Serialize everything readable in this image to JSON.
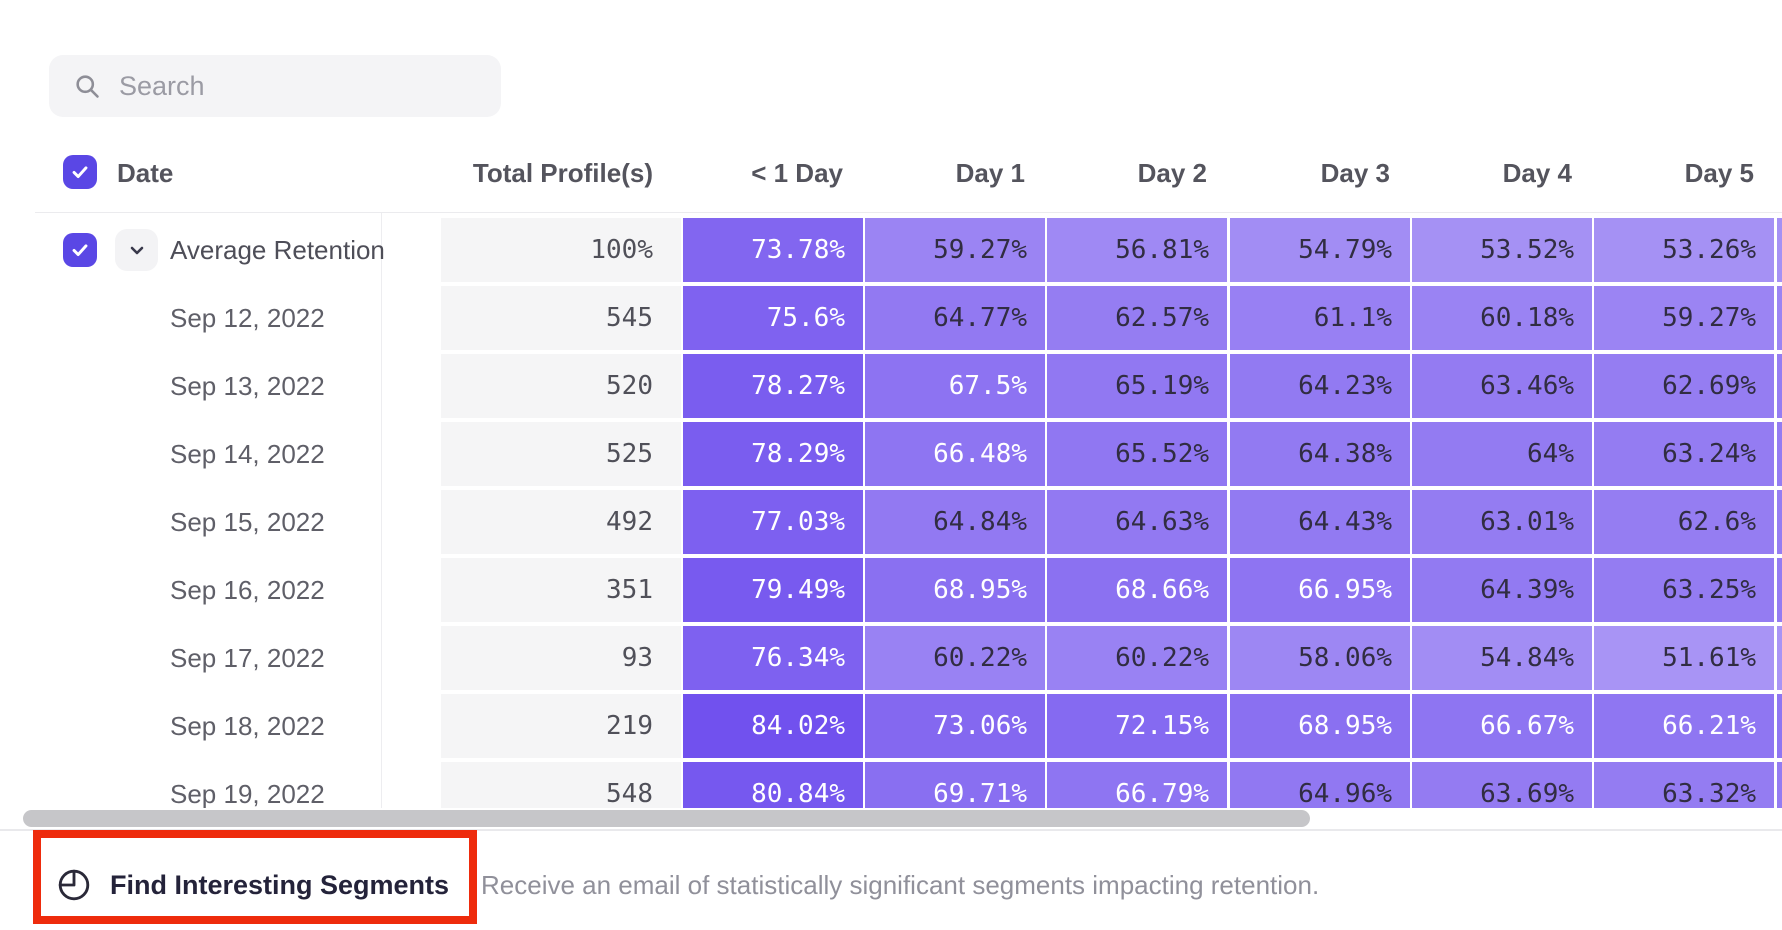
{
  "search": {
    "placeholder": "Search"
  },
  "table": {
    "date_header": "Date",
    "total_header": "Total Profile(s)",
    "day_headers": [
      "< 1 Day",
      "Day 1",
      "Day 2",
      "Day 3",
      "Day 4",
      "Day 5"
    ],
    "rows": [
      {
        "label": "Average Retention",
        "total": "100%",
        "expandable": true,
        "checked": true,
        "cells": [
          "73.78%",
          "59.27%",
          "56.81%",
          "54.79%",
          "53.52%",
          "53.26%"
        ]
      },
      {
        "label": "Sep 12, 2022",
        "total": "545",
        "cells": [
          "75.6%",
          "64.77%",
          "62.57%",
          "61.1%",
          "60.18%",
          "59.27%"
        ]
      },
      {
        "label": "Sep 13, 2022",
        "total": "520",
        "cells": [
          "78.27%",
          "67.5%",
          "65.19%",
          "64.23%",
          "63.46%",
          "62.69%"
        ]
      },
      {
        "label": "Sep 14, 2022",
        "total": "525",
        "cells": [
          "78.29%",
          "66.48%",
          "65.52%",
          "64.38%",
          "64%",
          "63.24%"
        ]
      },
      {
        "label": "Sep 15, 2022",
        "total": "492",
        "cells": [
          "77.03%",
          "64.84%",
          "64.63%",
          "64.43%",
          "63.01%",
          "62.6%"
        ]
      },
      {
        "label": "Sep 16, 2022",
        "total": "351",
        "cells": [
          "79.49%",
          "68.95%",
          "68.66%",
          "66.95%",
          "64.39%",
          "63.25%"
        ]
      },
      {
        "label": "Sep 17, 2022",
        "total": "93",
        "cells": [
          "76.34%",
          "60.22%",
          "60.22%",
          "58.06%",
          "54.84%",
          "51.61%"
        ]
      },
      {
        "label": "Sep 18, 2022",
        "total": "219",
        "cells": [
          "84.02%",
          "73.06%",
          "72.15%",
          "68.95%",
          "66.67%",
          "66.21%"
        ]
      },
      {
        "label": "Sep 19, 2022",
        "total": "548",
        "cells": [
          "80.84%",
          "69.71%",
          "66.79%",
          "64.96%",
          "63.69%",
          "63.32%"
        ]
      }
    ]
  },
  "footer": {
    "button_label": "Find Interesting Segments",
    "description": "Receive an email of statistically significant segments impacting retention."
  },
  "colors": {
    "accent_checkbox": "#5a47e5",
    "heatmap_base_rgb": "86,48,235",
    "heatmap_dark_text": "#312d42",
    "annotation_red": "#ee2b0c",
    "total_cell_bg": "#f5f5f6",
    "scrollbar_thumb": "#c6c6c9"
  },
  "chart_data": {
    "type": "heatmap",
    "title": "",
    "row_labels": [
      "Average Retention",
      "Sep 12, 2022",
      "Sep 13, 2022",
      "Sep 14, 2022",
      "Sep 15, 2022",
      "Sep 16, 2022",
      "Sep 17, 2022",
      "Sep 18, 2022",
      "Sep 19, 2022"
    ],
    "totals": [
      "100%",
      545,
      520,
      525,
      492,
      351,
      93,
      219,
      548
    ],
    "columns": [
      "< 1 Day",
      "Day 1",
      "Day 2",
      "Day 3",
      "Day 4",
      "Day 5"
    ],
    "values": [
      [
        73.78,
        59.27,
        56.81,
        54.79,
        53.52,
        53.26
      ],
      [
        75.6,
        64.77,
        62.57,
        61.1,
        60.18,
        59.27
      ],
      [
        78.27,
        67.5,
        65.19,
        64.23,
        63.46,
        62.69
      ],
      [
        78.29,
        66.48,
        65.52,
        64.38,
        64,
        63.24
      ],
      [
        77.03,
        64.84,
        64.63,
        64.43,
        63.01,
        62.6
      ],
      [
        79.49,
        68.95,
        68.66,
        66.95,
        64.39,
        63.25
      ],
      [
        76.34,
        60.22,
        60.22,
        58.06,
        54.84,
        51.61
      ],
      [
        84.02,
        73.06,
        72.15,
        68.95,
        66.67,
        66.21
      ],
      [
        80.84,
        69.71,
        66.79,
        64.96,
        63.69,
        63.32
      ]
    ],
    "value_unit": "%",
    "legend_position": "none",
    "grid": false
  }
}
